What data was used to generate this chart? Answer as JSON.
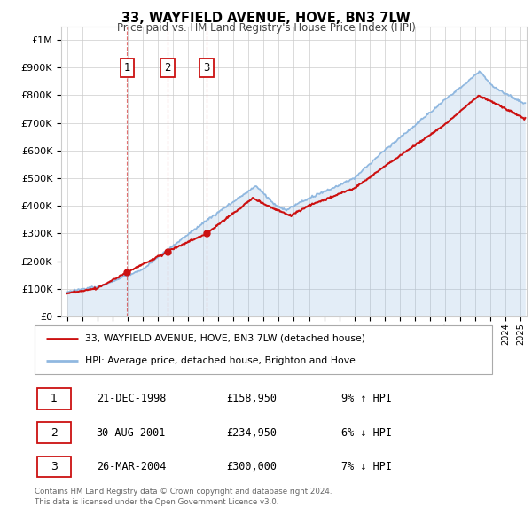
{
  "title": "33, WAYFIELD AVENUE, HOVE, BN3 7LW",
  "subtitle": "Price paid vs. HM Land Registry's House Price Index (HPI)",
  "yticks": [
    0,
    100000,
    200000,
    300000,
    400000,
    500000,
    600000,
    700000,
    800000,
    900000,
    1000000
  ],
  "ytick_labels": [
    "£0",
    "£100K",
    "£200K",
    "£300K",
    "£400K",
    "£500K",
    "£600K",
    "£700K",
    "£800K",
    "£900K",
    "£1M"
  ],
  "xlim_start": 1994.6,
  "xlim_end": 2025.4,
  "ylim_min": 0,
  "ylim_max": 1050000,
  "hpi_color": "#90b8e0",
  "price_color": "#cc1111",
  "purchase_dates": [
    1998.97,
    2001.66,
    2004.23
  ],
  "purchase_prices": [
    158950,
    234950,
    300000
  ],
  "purchase_labels": [
    "1",
    "2",
    "3"
  ],
  "legend_price_label": "33, WAYFIELD AVENUE, HOVE, BN3 7LW (detached house)",
  "legend_hpi_label": "HPI: Average price, detached house, Brighton and Hove",
  "table_rows": [
    [
      "1",
      "21-DEC-1998",
      "£158,950",
      "9% ↑ HPI"
    ],
    [
      "2",
      "30-AUG-2001",
      "£234,950",
      "6% ↓ HPI"
    ],
    [
      "3",
      "26-MAR-2004",
      "£300,000",
      "7% ↓ HPI"
    ]
  ],
  "footer": "Contains HM Land Registry data © Crown copyright and database right 2024.\nThis data is licensed under the Open Government Licence v3.0.",
  "background_color": "#ffffff",
  "plot_bg_color": "#ffffff",
  "grid_color": "#cccccc"
}
